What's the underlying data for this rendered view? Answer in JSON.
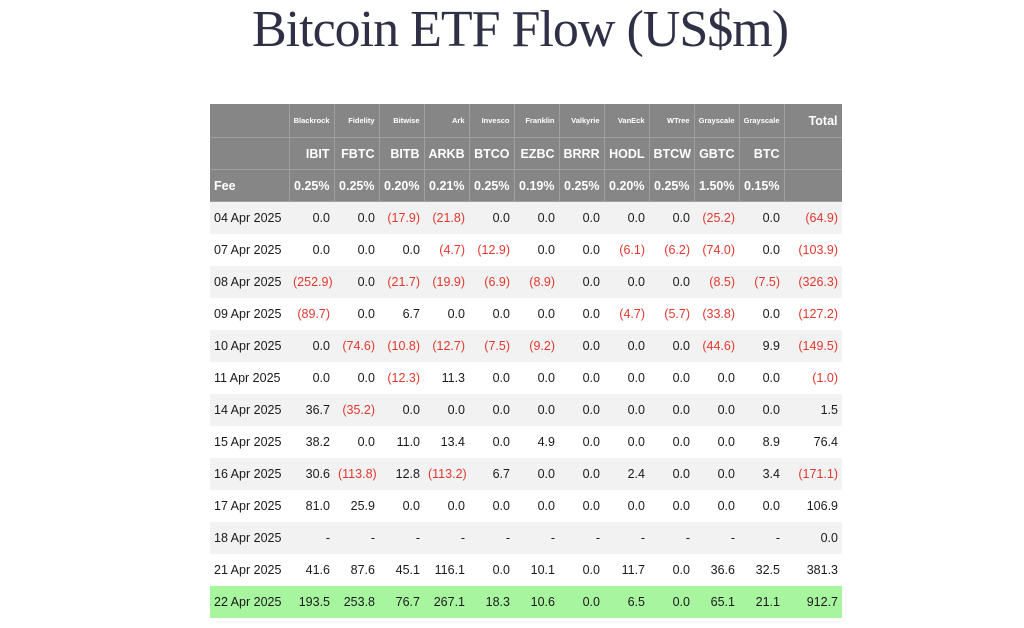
{
  "title": "Bitcoin ETF Flow (US$m)",
  "header": {
    "issuers": [
      "Blackrock",
      "Fidelity",
      "Bitwise",
      "Ark",
      "Invesco",
      "Franklin",
      "Valkyrie",
      "VanEck",
      "WTree",
      "Grayscale",
      "Grayscale"
    ],
    "total_label": "Total",
    "tickers": [
      "IBIT",
      "FBTC",
      "BITB",
      "ARKB",
      "BTCO",
      "EZBC",
      "BRRR",
      "HODL",
      "BTCW",
      "GBTC",
      "BTC"
    ],
    "fee_label": "Fee",
    "fees": [
      "0.25%",
      "0.25%",
      "0.20%",
      "0.21%",
      "0.25%",
      "0.19%",
      "0.25%",
      "0.20%",
      "0.25%",
      "1.50%",
      "0.15%"
    ]
  },
  "rows": [
    {
      "date": "04 Apr 2025",
      "values": [
        "0.0",
        "0.0",
        "(17.9)",
        "(21.8)",
        "0.0",
        "0.0",
        "0.0",
        "0.0",
        "0.0",
        "(25.2)",
        "0.0"
      ],
      "total": "(64.9)"
    },
    {
      "date": "07 Apr 2025",
      "values": [
        "0.0",
        "0.0",
        "0.0",
        "(4.7)",
        "(12.9)",
        "0.0",
        "0.0",
        "(6.1)",
        "(6.2)",
        "(74.0)",
        "0.0"
      ],
      "total": "(103.9)"
    },
    {
      "date": "08 Apr 2025",
      "values": [
        "(252.9)",
        "0.0",
        "(21.7)",
        "(19.9)",
        "(6.9)",
        "(8.9)",
        "0.0",
        "0.0",
        "0.0",
        "(8.5)",
        "(7.5)"
      ],
      "total": "(326.3)"
    },
    {
      "date": "09 Apr 2025",
      "values": [
        "(89.7)",
        "0.0",
        "6.7",
        "0.0",
        "0.0",
        "0.0",
        "0.0",
        "(4.7)",
        "(5.7)",
        "(33.8)",
        "0.0"
      ],
      "total": "(127.2)"
    },
    {
      "date": "10 Apr 2025",
      "values": [
        "0.0",
        "(74.6)",
        "(10.8)",
        "(12.7)",
        "(7.5)",
        "(9.2)",
        "0.0",
        "0.0",
        "0.0",
        "(44.6)",
        "9.9"
      ],
      "total": "(149.5)"
    },
    {
      "date": "11 Apr 2025",
      "values": [
        "0.0",
        "0.0",
        "(12.3)",
        "11.3",
        "0.0",
        "0.0",
        "0.0",
        "0.0",
        "0.0",
        "0.0",
        "0.0"
      ],
      "total": "(1.0)"
    },
    {
      "date": "14 Apr 2025",
      "values": [
        "36.7",
        "(35.2)",
        "0.0",
        "0.0",
        "0.0",
        "0.0",
        "0.0",
        "0.0",
        "0.0",
        "0.0",
        "0.0"
      ],
      "total": "1.5"
    },
    {
      "date": "15 Apr 2025",
      "values": [
        "38.2",
        "0.0",
        "11.0",
        "13.4",
        "0.0",
        "4.9",
        "0.0",
        "0.0",
        "0.0",
        "0.0",
        "8.9"
      ],
      "total": "76.4"
    },
    {
      "date": "16 Apr 2025",
      "values": [
        "30.6",
        "(113.8)",
        "12.8",
        "(113.2)",
        "6.7",
        "0.0",
        "0.0",
        "2.4",
        "0.0",
        "0.0",
        "3.4"
      ],
      "total": "(171.1)"
    },
    {
      "date": "17 Apr 2025",
      "values": [
        "81.0",
        "25.9",
        "0.0",
        "0.0",
        "0.0",
        "0.0",
        "0.0",
        "0.0",
        "0.0",
        "0.0",
        "0.0"
      ],
      "total": "106.9"
    },
    {
      "date": "18 Apr 2025",
      "values": [
        "-",
        "-",
        "-",
        "-",
        "-",
        "-",
        "-",
        "-",
        "-",
        "-",
        "-"
      ],
      "total": "0.0"
    },
    {
      "date": "21 Apr 2025",
      "values": [
        "41.6",
        "87.6",
        "45.1",
        "116.1",
        "0.0",
        "10.1",
        "0.0",
        "11.7",
        "0.0",
        "36.6",
        "32.5"
      ],
      "total": "381.3"
    },
    {
      "date": "22 Apr 2025",
      "values": [
        "193.5",
        "253.8",
        "76.7",
        "267.1",
        "18.3",
        "10.6",
        "0.0",
        "6.5",
        "0.0",
        "65.1",
        "21.1"
      ],
      "total": "912.7",
      "highlight": true
    }
  ],
  "colors": {
    "header_bg": "#868686",
    "negative_text": "#e0382f",
    "highlight_row": "#a8f5a0",
    "title_text": "#2f3046"
  }
}
